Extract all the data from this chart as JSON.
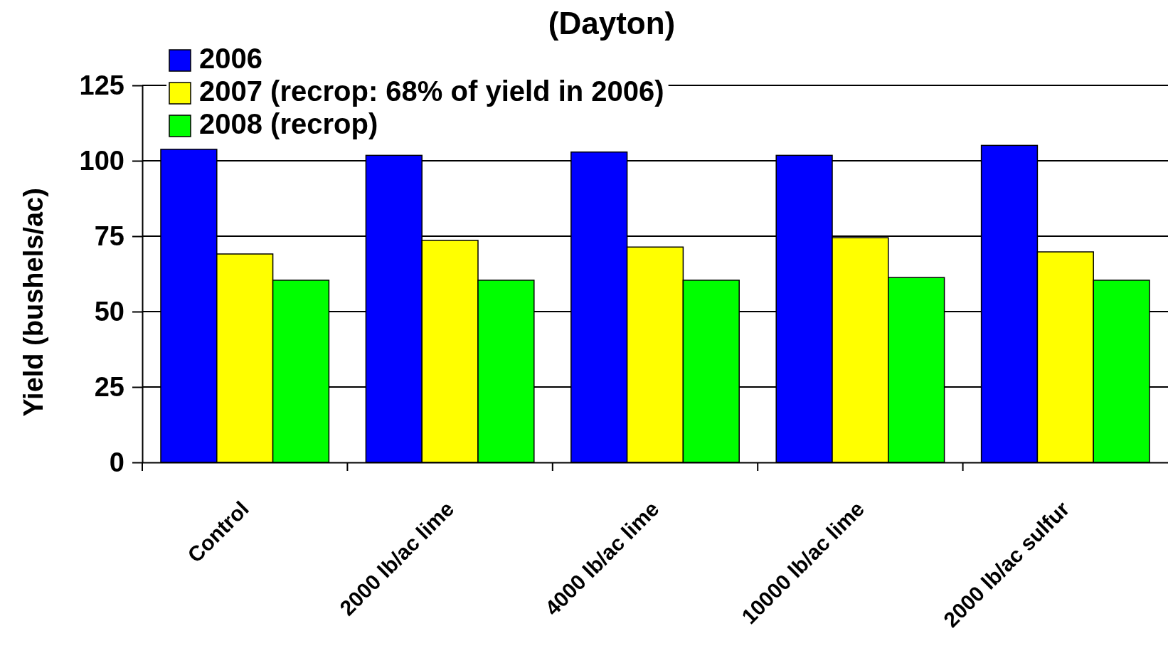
{
  "chart_data": {
    "type": "bar",
    "title": "(Dayton)",
    "ylabel": "Yield (bushels/ac)",
    "categories": [
      "Control",
      "2000 lb/ac lime",
      "4000 lb/ac lime",
      "10000 lb/ac lime",
      "2000 lb/ac sulfur"
    ],
    "series": [
      {
        "name": "2006",
        "color": "#0000ff",
        "values": [
          103.8,
          101.8,
          102.9,
          101.8,
          105.1
        ]
      },
      {
        "name": "2007 (recrop: 68% of yield in 2006)",
        "color": "#ffff00",
        "values": [
          69.1,
          73.6,
          71.4,
          74.5,
          69.8
        ]
      },
      {
        "name": "2008 (recrop)",
        "color": "#00ff00",
        "values": [
          60.4,
          60.4,
          60.4,
          61.3,
          60.4
        ]
      }
    ],
    "ylim": [
      0,
      125
    ],
    "yticks": [
      0,
      25,
      50,
      75,
      100,
      125
    ],
    "grid": "y",
    "legend": "top left"
  }
}
